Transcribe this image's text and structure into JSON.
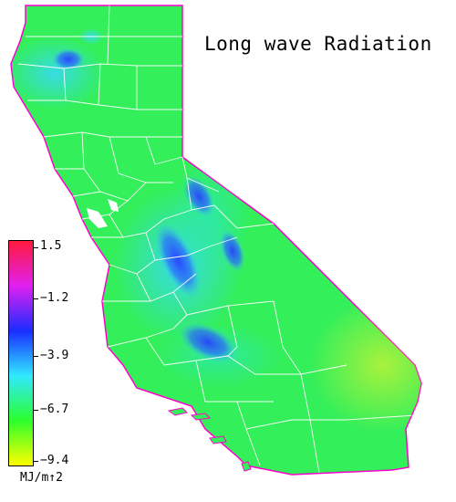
{
  "title": "Long wave Radiation",
  "legend": {
    "unit": "MJ/m↑2",
    "ticks": [
      "1.5",
      "−1.2",
      "−3.9",
      "−6.7",
      "−9.4"
    ],
    "values": [
      1.5,
      -1.2,
      -3.9,
      -6.7,
      -9.4
    ],
    "colors": [
      "#ff1a3c",
      "#e020f0",
      "#1a2cff",
      "#30e8ff",
      "#2cff2c",
      "#ffff00"
    ]
  },
  "map": {
    "region": "California",
    "base_color": "#33ef5a",
    "boundary_color": "#ffffff",
    "coast_color": "#ff00cc"
  }
}
